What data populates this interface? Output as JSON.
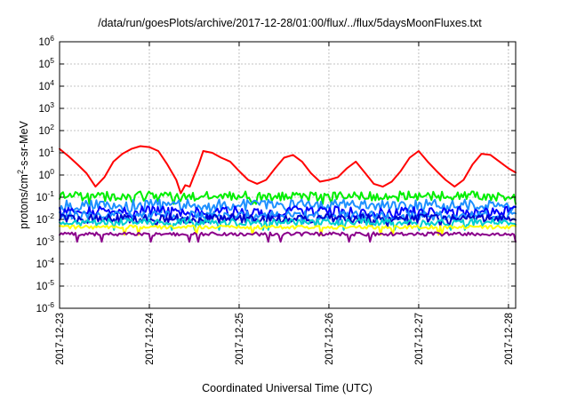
{
  "chart_data": {
    "type": "line",
    "title": "/data/run/goesPlots/archive/2017-12-28/01:00/flux/../flux/5daysMoonFluxes.txt",
    "xlabel": "Coordinated Universal Time (UTC)",
    "ylabel": "protons/cm2-s-sr-MeV",
    "ylabel_parts": {
      "pre": "protons/cm",
      "sup": "2",
      "post": "-s-sr-MeV"
    },
    "y_scale": "log",
    "ylim": [
      1e-06,
      1000000.0
    ],
    "y_ticks": [
      {
        "base": "10",
        "exp": "-6",
        "value": 1e-06
      },
      {
        "base": "10",
        "exp": "-5",
        "value": 1e-05
      },
      {
        "base": "10",
        "exp": "-4",
        "value": 0.0001
      },
      {
        "base": "10",
        "exp": "-3",
        "value": 0.001
      },
      {
        "base": "10",
        "exp": "-2",
        "value": 0.01
      },
      {
        "base": "10",
        "exp": "-1",
        "value": 0.1
      },
      {
        "base": "10",
        "exp": "0",
        "value": 1
      },
      {
        "base": "10",
        "exp": "1",
        "value": 10
      },
      {
        "base": "10",
        "exp": "2",
        "value": 100
      },
      {
        "base": "10",
        "exp": "3",
        "value": 1000
      },
      {
        "base": "10",
        "exp": "4",
        "value": 10000
      },
      {
        "base": "10",
        "exp": "5",
        "value": 100000
      },
      {
        "base": "10",
        "exp": "6",
        "value": 1000000
      }
    ],
    "x_tick_labels": [
      "2017-12-23",
      "2017-12-24",
      "2017-12-25",
      "2017-12-26",
      "2017-12-27",
      "2017-12-28"
    ],
    "xlim_days": [
      0,
      5.08
    ],
    "grid": true,
    "legend": "none",
    "series": [
      {
        "color": "#ff0000",
        "x": [
          0.0,
          0.1,
          0.2,
          0.3,
          0.4,
          0.5,
          0.6,
          0.7,
          0.8,
          0.9,
          1.0,
          1.1,
          1.2,
          1.3,
          1.35,
          1.4,
          1.45,
          1.5,
          1.55,
          1.6,
          1.7,
          1.8,
          1.9,
          2.0,
          2.1,
          2.2,
          2.3,
          2.4,
          2.5,
          2.6,
          2.7,
          2.8,
          2.9,
          3.0,
          3.1,
          3.2,
          3.3,
          3.4,
          3.5,
          3.6,
          3.7,
          3.8,
          3.9,
          4.0,
          4.1,
          4.2,
          4.3,
          4.4,
          4.5,
          4.6,
          4.7,
          4.8,
          4.9,
          5.0,
          5.08
        ],
        "values": [
          15,
          7,
          3,
          1.2,
          0.3,
          0.8,
          4,
          9,
          15,
          20,
          18,
          12,
          3,
          0.6,
          0.15,
          0.35,
          0.3,
          1,
          3,
          12,
          10,
          6,
          4,
          1.5,
          0.6,
          0.4,
          0.6,
          2,
          6,
          8,
          4,
          1.2,
          0.5,
          0.6,
          0.8,
          2,
          4,
          1.3,
          0.4,
          0.3,
          0.5,
          1.5,
          6,
          12,
          4,
          1.5,
          0.6,
          0.3,
          0.6,
          3,
          9,
          8,
          4,
          2,
          1.3
        ]
      },
      {
        "color": "#00ee00",
        "base": 0.11,
        "amp": 0.22,
        "seed": 3
      },
      {
        "color": "#1e90ff",
        "base": 0.045,
        "amp": 0.25,
        "seed": 7
      },
      {
        "color": "#0000ff",
        "base": 0.022,
        "amp": 0.25,
        "seed": 11
      },
      {
        "color": "#1e90ff",
        "base": 0.015,
        "amp": 0.2,
        "seed": 13
      },
      {
        "color": "#0000cd",
        "base": 0.011,
        "amp": 0.2,
        "seed": 17
      },
      {
        "color": "#00ced1",
        "base": 0.0075,
        "amp": 0.15,
        "seed": 19
      },
      {
        "color": "#ffff00",
        "base": 0.0045,
        "amp": 0.08,
        "seed": 23
      },
      {
        "color": "#8b008b",
        "base": 0.0022,
        "amp": 0.08,
        "seed": 29
      }
    ]
  }
}
